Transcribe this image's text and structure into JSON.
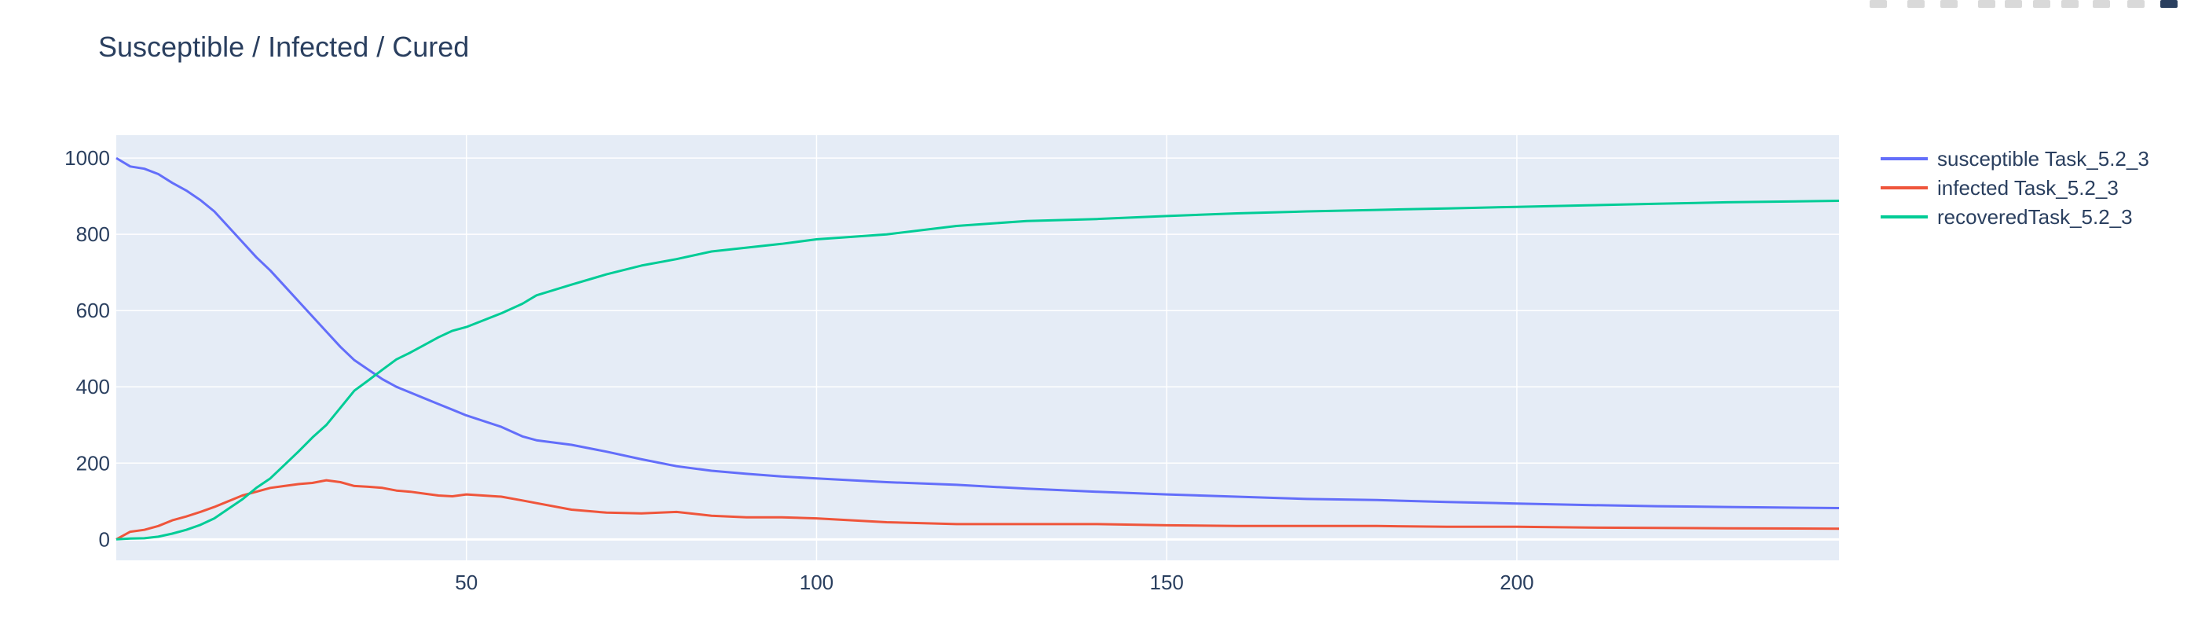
{
  "chart_data": {
    "type": "line",
    "title": "Susceptible / Infected / Cured",
    "xlabel": "",
    "ylabel": "",
    "xlim": [
      0,
      246
    ],
    "ylim": [
      -55,
      1060
    ],
    "xticks": [
      50,
      100,
      150,
      200
    ],
    "yticks": [
      0,
      200,
      400,
      600,
      800,
      1000
    ],
    "grid": true,
    "legend_position": "right",
    "plot_bgcolor": "#e5ecf6",
    "series": [
      {
        "name": "susceptible Task_5.2_3",
        "color": "#636efa",
        "x": [
          0,
          2,
          4,
          6,
          8,
          10,
          12,
          14,
          16,
          18,
          20,
          22,
          24,
          26,
          28,
          30,
          32,
          34,
          36,
          38,
          40,
          42,
          44,
          46,
          48,
          50,
          55,
          58,
          60,
          65,
          70,
          75,
          80,
          85,
          90,
          95,
          100,
          110,
          120,
          130,
          140,
          150,
          160,
          170,
          180,
          190,
          200,
          210,
          220,
          230,
          246
        ],
        "y": [
          1000,
          978,
          972,
          958,
          935,
          915,
          890,
          860,
          820,
          780,
          740,
          705,
          665,
          625,
          585,
          545,
          505,
          470,
          445,
          420,
          400,
          385,
          370,
          355,
          340,
          325,
          295,
          270,
          260,
          248,
          230,
          210,
          192,
          180,
          172,
          165,
          160,
          150,
          143,
          133,
          125,
          118,
          112,
          106,
          103,
          98,
          94,
          90,
          87,
          85,
          82
        ]
      },
      {
        "name": "infected Task_5.2_3",
        "color": "#ef553b",
        "x": [
          0,
          2,
          4,
          6,
          8,
          10,
          12,
          14,
          16,
          18,
          20,
          22,
          24,
          26,
          28,
          30,
          32,
          34,
          36,
          38,
          40,
          42,
          44,
          46,
          48,
          50,
          55,
          58,
          60,
          65,
          70,
          75,
          80,
          85,
          90,
          95,
          100,
          110,
          120,
          130,
          140,
          150,
          160,
          170,
          180,
          190,
          200,
          210,
          220,
          230,
          246
        ],
        "y": [
          0,
          20,
          25,
          35,
          50,
          60,
          72,
          85,
          100,
          115,
          125,
          135,
          140,
          145,
          148,
          155,
          150,
          140,
          138,
          135,
          128,
          125,
          120,
          115,
          113,
          118,
          112,
          102,
          95,
          78,
          70,
          68,
          72,
          62,
          58,
          58,
          55,
          45,
          40,
          40,
          40,
          37,
          35,
          35,
          35,
          33,
          33,
          31,
          30,
          29,
          28
        ]
      },
      {
        "name": "recoveredTask_5.2_3",
        "color": "#00cc96",
        "x": [
          0,
          2,
          4,
          6,
          8,
          10,
          12,
          14,
          16,
          18,
          20,
          22,
          24,
          26,
          28,
          30,
          32,
          34,
          36,
          38,
          40,
          42,
          44,
          46,
          48,
          50,
          55,
          58,
          60,
          65,
          70,
          75,
          80,
          85,
          90,
          95,
          100,
          110,
          120,
          130,
          140,
          150,
          160,
          170,
          180,
          190,
          200,
          210,
          220,
          230,
          246
        ],
        "y": [
          0,
          2,
          3,
          7,
          15,
          25,
          38,
          55,
          80,
          105,
          135,
          160,
          195,
          230,
          267,
          300,
          345,
          390,
          417,
          445,
          472,
          490,
          510,
          530,
          547,
          557,
          593,
          618,
          640,
          668,
          695,
          718,
          735,
          755,
          765,
          775,
          787,
          800,
          822,
          835,
          840,
          848,
          855,
          860,
          864,
          868,
          872,
          876,
          880,
          884,
          888
        ]
      }
    ]
  }
}
